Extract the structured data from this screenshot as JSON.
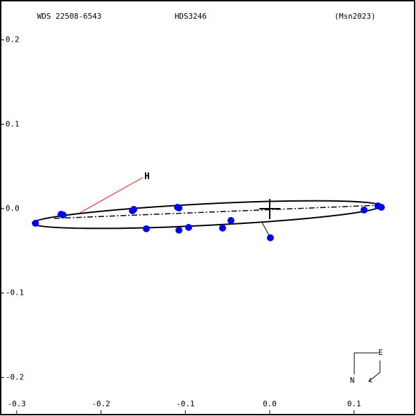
{
  "chart_data": {
    "type": "scatter",
    "identifier": "WDS 22508-6543",
    "title": "HDS3246",
    "reference": "(Msn2023)",
    "annotation": "H",
    "annotation_color": "#ff0000",
    "compass": {
      "east": "E",
      "north": "N"
    },
    "series": [
      {
        "color": "#0000ff",
        "x": [
          -0.2777,
          -0.2473,
          -0.2449,
          -0.1627,
          -0.1611,
          -0.1093,
          -0.1076,
          -0.1463,
          -0.1076,
          -0.0961,
          -0.0559,
          -0.046,
          0.0008,
          0.1118,
          0.1282,
          0.1323
        ],
        "values": [
          -0.0173,
          -0.0066,
          -0.0074,
          -0.0025,
          -0.0008,
          0.0016,
          0.0008,
          -0.0238,
          -0.0255,
          -0.0222,
          -0.023,
          -0.014,
          -0.0345,
          -0.0016,
          0.0033,
          0.0016
        ]
      }
    ],
    "xlim": [
      -0.3197,
      0.1734
    ],
    "ylim": [
      -0.2457,
      0.2473
    ],
    "xticks": [
      -0.3,
      -0.2,
      -0.1,
      {
        "value": 0,
        "label": "0.0"
      },
      0.1
    ],
    "yticks": [
      -0.2,
      -0.1,
      {
        "value": 0,
        "label": "0.0"
      },
      0.1,
      0.2
    ]
  }
}
